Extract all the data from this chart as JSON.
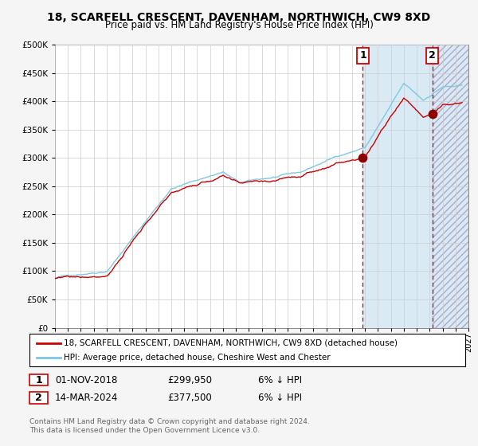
{
  "title": "18, SCARFELL CRESCENT, DAVENHAM, NORTHWICH, CW9 8XD",
  "subtitle": "Price paid vs. HM Land Registry's House Price Index (HPI)",
  "legend_line1": "18, SCARFELL CRESCENT, DAVENHAM, NORTHWICH, CW9 8XD (detached house)",
  "legend_line2": "HPI: Average price, detached house, Cheshire West and Chester",
  "annotation1_label": "1",
  "annotation1_date": "01-NOV-2018",
  "annotation1_price": "£299,950",
  "annotation1_hpi": "6% ↓ HPI",
  "annotation2_label": "2",
  "annotation2_date": "14-MAR-2024",
  "annotation2_price": "£377,500",
  "annotation2_hpi": "6% ↓ HPI",
  "footnote": "Contains HM Land Registry data © Crown copyright and database right 2024.\nThis data is licensed under the Open Government Licence v3.0.",
  "point1_year": 2018.83,
  "point1_value": 299950,
  "point2_year": 2024.2,
  "point2_value": 377500,
  "hpi_color": "#7ec8e3",
  "price_color": "#cc0000",
  "point_color": "#8b0000",
  "dashed_line_color": "#cc0000",
  "background_shaded_color": "#daeaf5",
  "ylim": [
    0,
    500000
  ],
  "xlim_start": 1995.0,
  "xlim_end": 2027.0,
  "grid_color": "#cccccc",
  "box_color": "#cc0000",
  "bg_color": "#f5f5f5"
}
